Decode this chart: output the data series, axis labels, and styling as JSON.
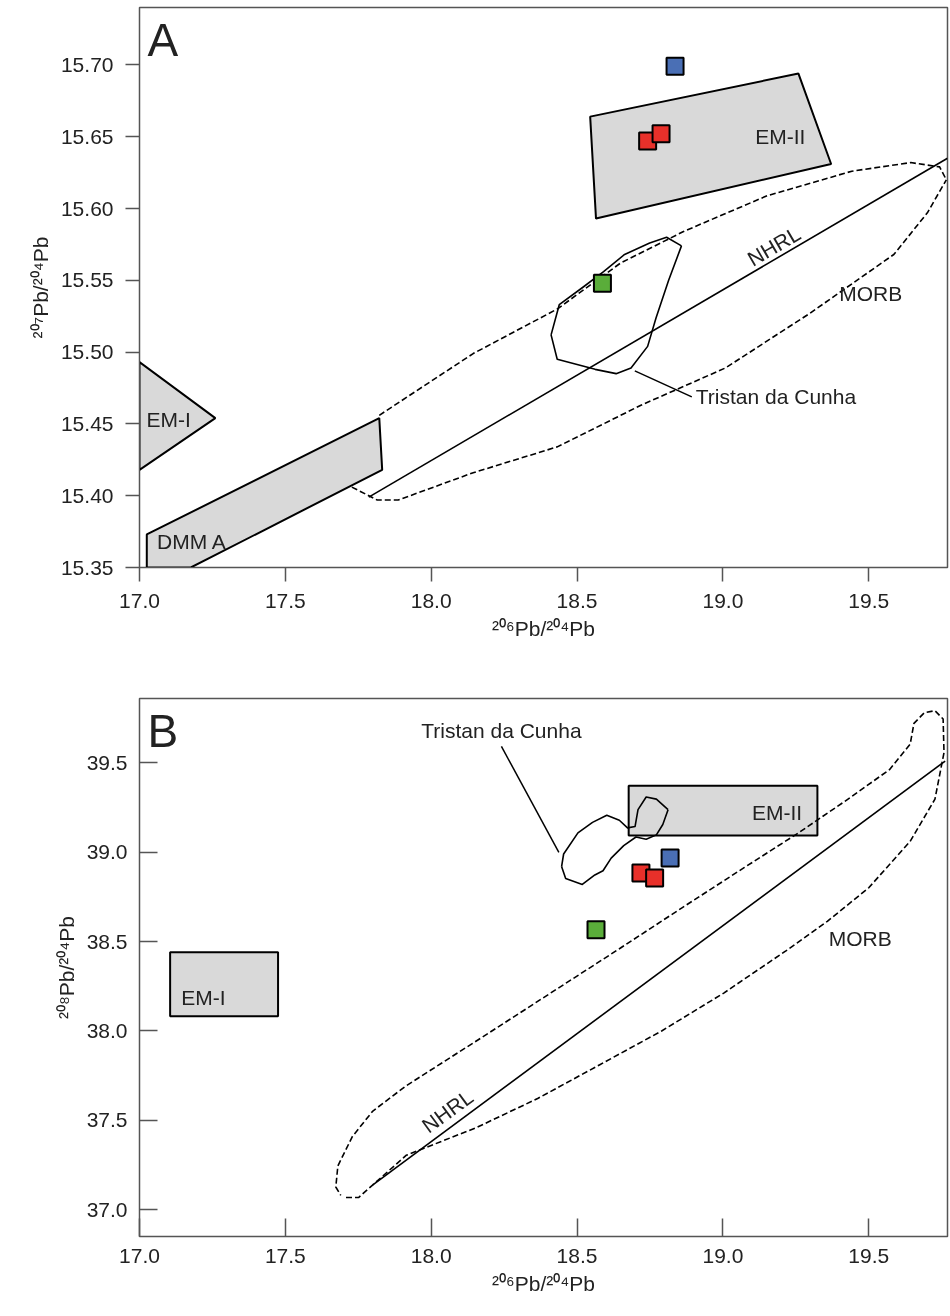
{
  "chart_data": [
    {
      "type": "scatter",
      "title": "A",
      "xlabel": "²⁰⁶Pb/²⁰⁴Pb",
      "ylabel": "²⁰⁷Pb/²⁰⁴Pb",
      "xlim": [
        17.0,
        19.77
      ],
      "ylim": [
        15.35,
        15.74
      ],
      "xticks": [
        {
          "value": 17,
          "label": "17.0"
        },
        17.5,
        {
          "value": 18,
          "label": "18.0"
        },
        18.5,
        {
          "value": 19,
          "label": "19.0"
        },
        19.5
      ],
      "yticks": [
        15.35,
        {
          "value": 15.4,
          "label": "15.40"
        },
        15.45,
        {
          "value": 15.5,
          "label": "15.50"
        },
        15.55,
        {
          "value": 15.6,
          "label": "15.60"
        },
        15.65,
        {
          "value": 15.7,
          "label": "15.70"
        }
      ],
      "series": [
        {
          "type": "area",
          "color": "#d9d9d9",
          "x": [
            18.545,
            19.259,
            19.371,
            18.565
          ],
          "values": [
            15.664,
            15.694,
            15.631,
            15.593
          ]
        },
        {
          "type": "area",
          "color": "#d9d9d9",
          "x": [
            17.0,
            17.26,
            17.0
          ],
          "values": [
            15.493,
            15.454,
            15.418
          ]
        },
        {
          "type": "line",
          "color": "#000000",
          "line_style": "dashed",
          "x": [
            17.822,
            18.144,
            18.432,
            18.649,
            18.865,
            19.153,
            19.442,
            19.644,
            19.743,
            19.766
          ],
          "values": [
            15.456,
            15.499,
            15.53,
            15.562,
            15.584,
            15.609,
            15.626,
            15.632,
            15.629,
            15.62
          ]
        },
        {
          "type": "line",
          "color": "#000000",
          "line_style": "dashed",
          "x": [
            17.728,
            17.815,
            17.887,
            18.144,
            18.432,
            18.719,
            19.009,
            19.298,
            19.586,
            19.701,
            19.766
          ],
          "values": [
            15.406,
            15.397,
            15.397,
            15.416,
            15.434,
            15.463,
            15.489,
            15.527,
            15.568,
            15.597,
            15.62
          ]
        },
        {
          "type": "area",
          "color": "#d9d9d9",
          "x": [
            17.025,
            17.822,
            17.832,
            17.176,
            17.025
          ],
          "values": [
            15.373,
            15.454,
            15.418,
            15.35,
            15.35
          ]
        },
        {
          "type": "line",
          "color": "#000000",
          "line_style": "solid",
          "x": [
            17.786,
            19.77
          ],
          "values": [
            15.399,
            15.635
          ]
        },
        {
          "type": "line",
          "color": "#000000",
          "line_style": "solid",
          "x": [
            18.411,
            18.439,
            18.519,
            18.591,
            18.663,
            18.749,
            18.807,
            18.858
          ],
          "values": [
            15.512,
            15.533,
            15.545,
            15.556,
            15.568,
            15.576,
            15.58,
            15.574
          ]
        },
        {
          "type": "line",
          "color": "#000000",
          "line_style": "solid",
          "x": [
            18.411,
            18.432,
            18.562,
            18.634,
            18.685,
            18.742,
            18.771,
            18.814,
            18.858
          ],
          "values": [
            15.512,
            15.495,
            15.488,
            15.485,
            15.489,
            15.504,
            15.524,
            15.55,
            15.574
          ]
        },
        {
          "marker": "square",
          "x": [
            18.836,
            18.742,
            18.788,
            18.587
          ],
          "values": [
            15.699,
            15.647,
            15.652,
            15.548
          ],
          "colors": [
            "#4a6fb5",
            "#e8302a",
            "#e8302a",
            "#5aad3a"
          ]
        }
      ],
      "annotations": [
        "EM-II",
        "EM-I",
        "DMM A",
        "NHRL",
        "MORB",
        "Tristan da Cunha"
      ]
    },
    {
      "type": "scatter",
      "title": "B",
      "xlabel": "²⁰⁶Pb/²⁰⁴Pb",
      "ylabel": "²⁰⁸Pb/²⁰⁴Pb",
      "xlim": [
        17.0,
        19.77
      ],
      "ylim": [
        36.85,
        39.86
      ],
      "xticks": [
        {
          "value": 17,
          "label": "17.0"
        },
        17.5,
        {
          "value": 18,
          "label": "18.0"
        },
        18.5,
        {
          "value": 19,
          "label": "19.0"
        },
        19.5
      ],
      "yticks": [
        {
          "value": 37,
          "label": "37.0"
        },
        37.5,
        {
          "value": 38,
          "label": "38.0"
        },
        38.5,
        {
          "value": 39,
          "label": "39.0"
        },
        39.5
      ],
      "series": [
        {
          "type": "area",
          "color": "#d9d9d9",
          "x": [
            17.105,
            17.475,
            17.475,
            17.105
          ],
          "values": [
            38.441,
            38.441,
            38.082,
            38.082
          ]
        },
        {
          "type": "area",
          "color": "#d9d9d9",
          "x": [
            18.677,
            19.324,
            19.324,
            18.677
          ],
          "values": [
            39.372,
            39.372,
            39.094,
            39.094
          ]
        },
        {
          "type": "line",
          "color": "#000000",
          "line_style": "dashed",
          "x": [
            17.708,
            17.751,
            17.8,
            17.914,
            18.041,
            18.152,
            18.365,
            18.578,
            18.79,
            19.003,
            19.216,
            19.358,
            19.5,
            19.642,
            19.727,
            19.758,
            19.755,
            19.727,
            19.691,
            19.655,
            19.642,
            19.571,
            19.429,
            19.259,
            19.074,
            18.861,
            18.649,
            18.436,
            18.152,
            17.914,
            17.8,
            17.73,
            17.68,
            17.673,
            17.69
          ],
          "values": [
            37.068,
            37.068,
            37.139,
            37.304,
            37.386,
            37.457,
            37.622,
            37.811,
            38.0,
            38.212,
            38.448,
            38.613,
            38.801,
            39.061,
            39.297,
            39.557,
            39.745,
            39.792,
            39.781,
            39.721,
            39.604,
            39.462,
            39.297,
            39.108,
            38.915,
            38.69,
            38.464,
            38.24,
            37.941,
            37.693,
            37.552,
            37.41,
            37.245,
            37.127,
            37.08
          ]
        },
        {
          "type": "line",
          "color": "#000000",
          "line_style": "solid",
          "x": [
            17.8,
            19.762
          ],
          "values": [
            37.139,
            39.51
          ]
        },
        {
          "type": "line",
          "color": "#000000",
          "line_style": "solid",
          "x": [
            18.447,
            18.454,
            18.503,
            18.553,
            18.602,
            18.645,
            18.673,
            18.699,
            18.709,
            18.737,
            18.772,
            18.812
          ],
          "values": [
            38.92,
            38.99,
            39.108,
            39.167,
            39.207,
            39.179,
            39.136,
            39.144,
            39.238,
            39.309,
            39.297,
            39.238
          ]
        },
        {
          "type": "line",
          "color": "#000000",
          "line_style": "solid",
          "x": [
            18.447,
            18.461,
            18.518,
            18.561,
            18.589,
            18.617,
            18.66,
            18.702,
            18.737,
            18.772,
            18.794,
            18.812
          ],
          "values": [
            38.92,
            38.853,
            38.82,
            38.873,
            38.896,
            38.967,
            39.037,
            39.085,
            39.073,
            39.097,
            39.155,
            39.238
          ]
        },
        {
          "marker": "square",
          "x": [
            18.819,
            18.719,
            18.766,
            18.565
          ],
          "values": [
            38.967,
            38.884,
            38.856,
            38.566
          ],
          "colors": [
            "#4a6fb5",
            "#e8302a",
            "#e8302a",
            "#5aad3a"
          ]
        }
      ],
      "annotations": [
        "EM-II",
        "EM-I",
        "NHRL",
        "MORB",
        "Tristan da Cunha"
      ]
    }
  ]
}
